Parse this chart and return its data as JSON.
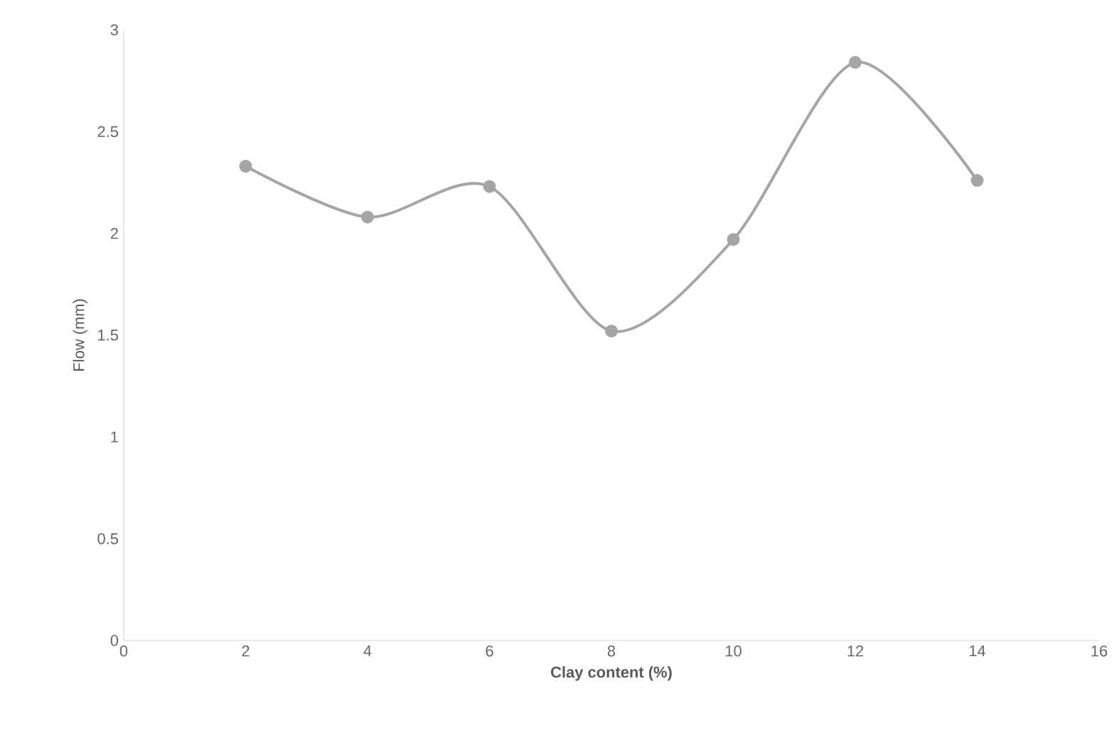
{
  "chart_data": {
    "type": "line",
    "xlabel": "Clay content (%)",
    "ylabel": "Flow (mm)",
    "x": [
      2,
      4,
      6,
      8,
      10,
      12,
      14
    ],
    "series": [
      {
        "color": "#a5a5a5",
        "values": [
          2.33,
          2.08,
          2.23,
          1.52,
          1.97,
          2.84,
          2.26
        ]
      }
    ],
    "xlim": [
      0,
      16
    ],
    "xticks": [
      0,
      2,
      4,
      6,
      8,
      10,
      12,
      14,
      16
    ],
    "ylim": [
      0,
      3
    ],
    "yticks": [
      0,
      0.5,
      1,
      1.5,
      2,
      2.5,
      3
    ],
    "grid": false,
    "marker": "circle",
    "line_style": "solid"
  }
}
